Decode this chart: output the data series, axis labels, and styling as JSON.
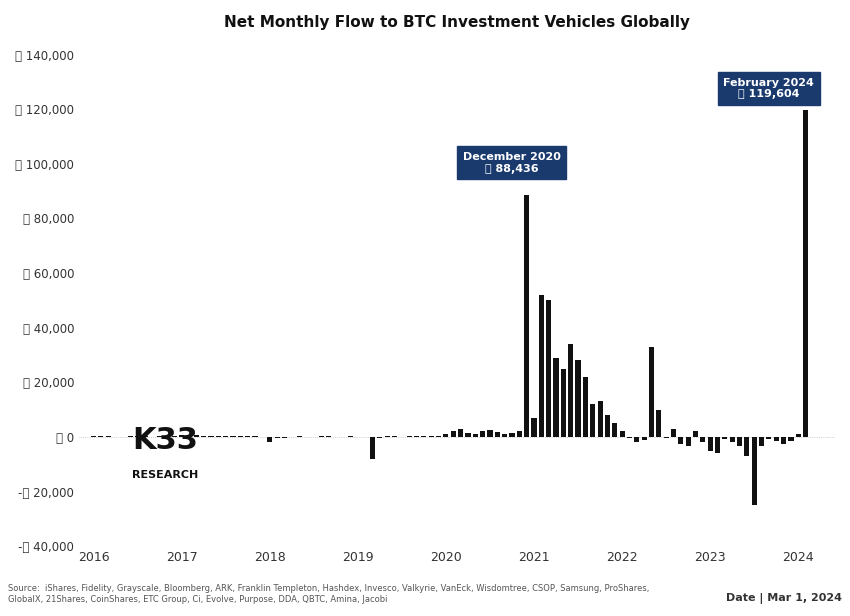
{
  "title": "Net Monthly Flow to BTC Investment Vehicles Globally",
  "ylabel_symbol": "₿",
  "background_color": "#ffffff",
  "bar_color": "#111111",
  "ylim": [
    -40000,
    145000
  ],
  "yticks": [
    -40000,
    -20000,
    0,
    20000,
    40000,
    60000,
    80000,
    100000,
    120000,
    140000
  ],
  "annotation1_label": "December 2020",
  "annotation1_value": "₿ 88,436",
  "annotation1_month_idx": 59,
  "annotation2_label": "February 2024",
  "annotation2_value": "₿ 119,604",
  "annotation2_month_idx": 97,
  "source_text": "Source:  iShares, Fidelity, Grayscale, Bloomberg, ARK, Franklin Templeton, Hashdex, Invesco, Valkyrie, VanEck, Wisdomtree, CSOP, Samsung, ProShares,\nGlobalX, 21Shares, CoinShares, ETC Group, Ci, Evolve, Purpose, DDA, QBTC, Amina, Jacobi",
  "date_text": "Date | Mar 1, 2024",
  "monthly_values": [
    500,
    200,
    300,
    100,
    -100,
    200,
    400,
    300,
    100,
    200,
    300,
    500,
    800,
    600,
    700,
    500,
    400,
    300,
    200,
    300,
    500,
    400,
    200,
    -200,
    -2000,
    -500,
    -300,
    -100,
    200,
    100,
    -100,
    200,
    300,
    100,
    -100,
    200,
    -100,
    -200,
    -8000,
    -500,
    300,
    200,
    100,
    200,
    500,
    400,
    300,
    200,
    1000,
    2000,
    3000,
    1500,
    1000,
    2000,
    2500,
    1800,
    1200,
    1500,
    2000,
    88436,
    7000,
    52000,
    50000,
    29000,
    25000,
    34000,
    28000,
    22000,
    12000,
    13000,
    8000,
    5000,
    2000,
    -500,
    -2000,
    -1000,
    33000,
    10000,
    -500,
    3000,
    -2500,
    -3500,
    2000,
    -2000,
    -5000,
    -6000,
    -800,
    -2000,
    -3500,
    -7000,
    -25000,
    -3500,
    -800,
    -1500,
    -2500,
    -1500,
    1000,
    119604,
    0,
    0
  ],
  "x_tick_years": [
    2016,
    2017,
    2018,
    2019,
    2020,
    2021,
    2022,
    2023,
    2024
  ],
  "annotation_box_color": "#1a3a6e",
  "annotation_text_color": "#ffffff"
}
